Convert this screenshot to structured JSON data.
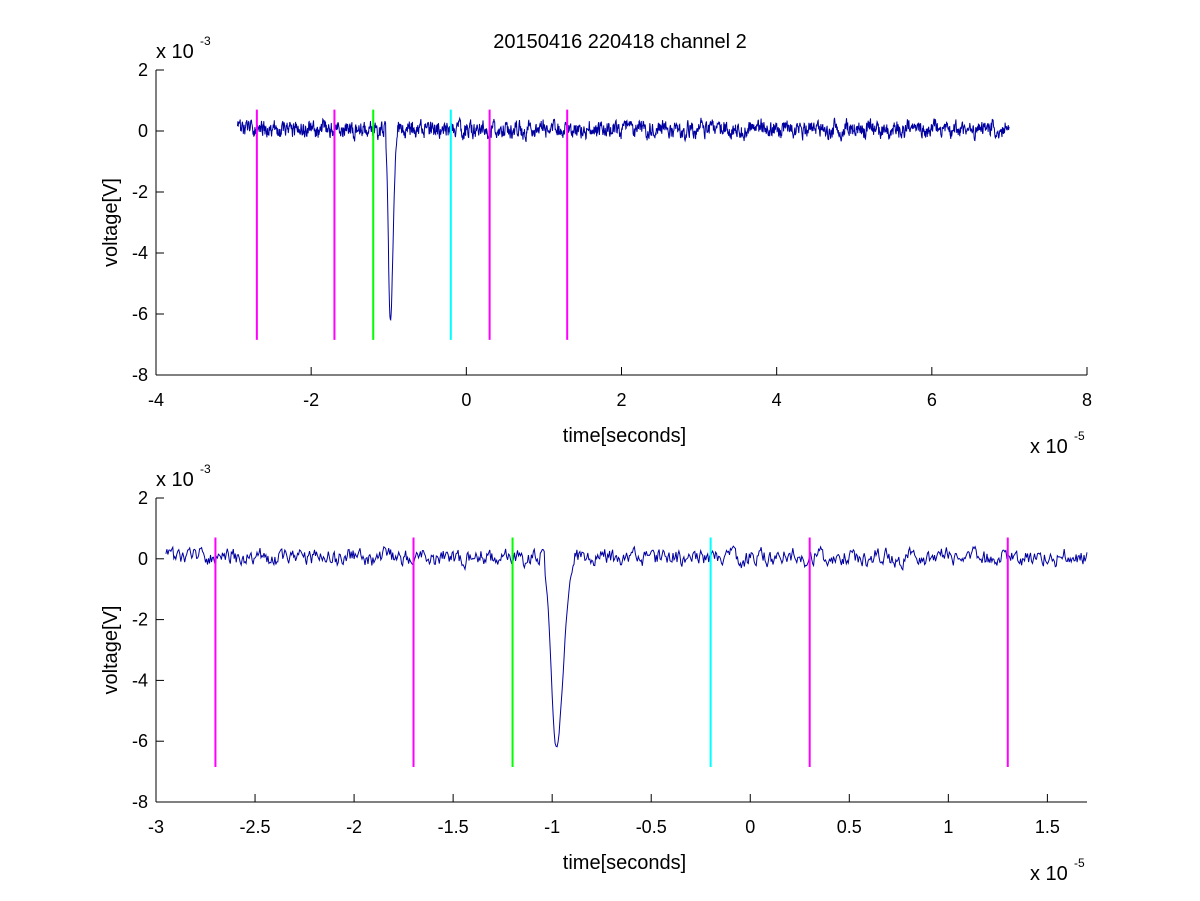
{
  "title": "20150416 220418 channel 2",
  "colors": {
    "signal": "#0000a0",
    "magenta": "#ff00ff",
    "green": "#00ff00",
    "cyan": "#00ffff",
    "axis": "#000000",
    "background": "#ffffff"
  },
  "chart_data": [
    {
      "type": "line",
      "title": "20150416 220418 channel 2",
      "xlabel": "time[seconds]",
      "ylabel": "voltage[V]",
      "x_exponent_label": "x 10",
      "x_exponent": "-5",
      "y_exponent_label": "x 10",
      "y_exponent": "-3",
      "xlim": [
        -4,
        8
      ],
      "ylim": [
        -8,
        2
      ],
      "x_ticks": [
        -4,
        -2,
        0,
        2,
        4,
        6,
        8
      ],
      "x_tick_labels": [
        "-4",
        "-2",
        "0",
        "2",
        "4",
        "6",
        "8"
      ],
      "y_ticks": [
        -8,
        -6,
        -4,
        -2,
        0,
        2
      ],
      "y_tick_labels": [
        "-8",
        "-6",
        "-4",
        "-2",
        "0",
        "2"
      ],
      "grid": false,
      "series": [
        {
          "role": "signal",
          "x_range": [
            -2.95,
            7.0
          ],
          "baseline": 0.05,
          "noise_amplitude": 0.25,
          "spike_center": -0.98,
          "spike_min": -6.2,
          "color": "#0000a0"
        }
      ],
      "markers": [
        {
          "x": -2.7,
          "y_range": [
            -6.85,
            0.7
          ],
          "color": "#ff00ff"
        },
        {
          "x": -1.7,
          "y_range": [
            -6.85,
            0.7
          ],
          "color": "#ff00ff"
        },
        {
          "x": -1.2,
          "y_range": [
            -6.85,
            0.7
          ],
          "color": "#00ff00"
        },
        {
          "x": -0.2,
          "y_range": [
            -6.85,
            0.7
          ],
          "color": "#00ffff"
        },
        {
          "x": 0.3,
          "y_range": [
            -6.85,
            0.7
          ],
          "color": "#ff00ff"
        },
        {
          "x": 1.3,
          "y_range": [
            -6.85,
            0.7
          ],
          "color": "#ff00ff"
        }
      ]
    },
    {
      "type": "line",
      "title": "",
      "xlabel": "time[seconds]",
      "ylabel": "voltage[V]",
      "x_exponent_label": "x 10",
      "x_exponent": "-5",
      "y_exponent_label": "x 10",
      "y_exponent": "-3",
      "xlim": [
        -3.0,
        1.7
      ],
      "ylim": [
        -8,
        2
      ],
      "x_ticks": [
        -3,
        -2.5,
        -2,
        -1.5,
        -1,
        -0.5,
        0,
        0.5,
        1,
        1.5
      ],
      "x_tick_labels": [
        "-3",
        "-2.5",
        "-2",
        "-1.5",
        "-1",
        "-0.5",
        "0",
        "0.5",
        "1",
        "1.5"
      ],
      "y_ticks": [
        -8,
        -6,
        -4,
        -2,
        0,
        2
      ],
      "y_tick_labels": [
        "-8",
        "-6",
        "-4",
        "-2",
        "0",
        "2"
      ],
      "grid": false,
      "series": [
        {
          "role": "signal",
          "x_range": [
            -2.95,
            1.7
          ],
          "baseline": 0.05,
          "noise_amplitude": 0.25,
          "spike_center": -0.98,
          "spike_min": -6.2,
          "color": "#0000a0"
        }
      ],
      "markers": [
        {
          "x": -2.7,
          "y_range": [
            -6.85,
            0.7
          ],
          "color": "#ff00ff"
        },
        {
          "x": -1.7,
          "y_range": [
            -6.85,
            0.7
          ],
          "color": "#ff00ff"
        },
        {
          "x": -1.2,
          "y_range": [
            -6.85,
            0.7
          ],
          "color": "#00ff00"
        },
        {
          "x": -0.2,
          "y_range": [
            -6.85,
            0.7
          ],
          "color": "#00ffff"
        },
        {
          "x": 0.3,
          "y_range": [
            -6.85,
            0.7
          ],
          "color": "#ff00ff"
        },
        {
          "x": 1.3,
          "y_range": [
            -6.85,
            0.7
          ],
          "color": "#ff00ff"
        }
      ]
    }
  ]
}
